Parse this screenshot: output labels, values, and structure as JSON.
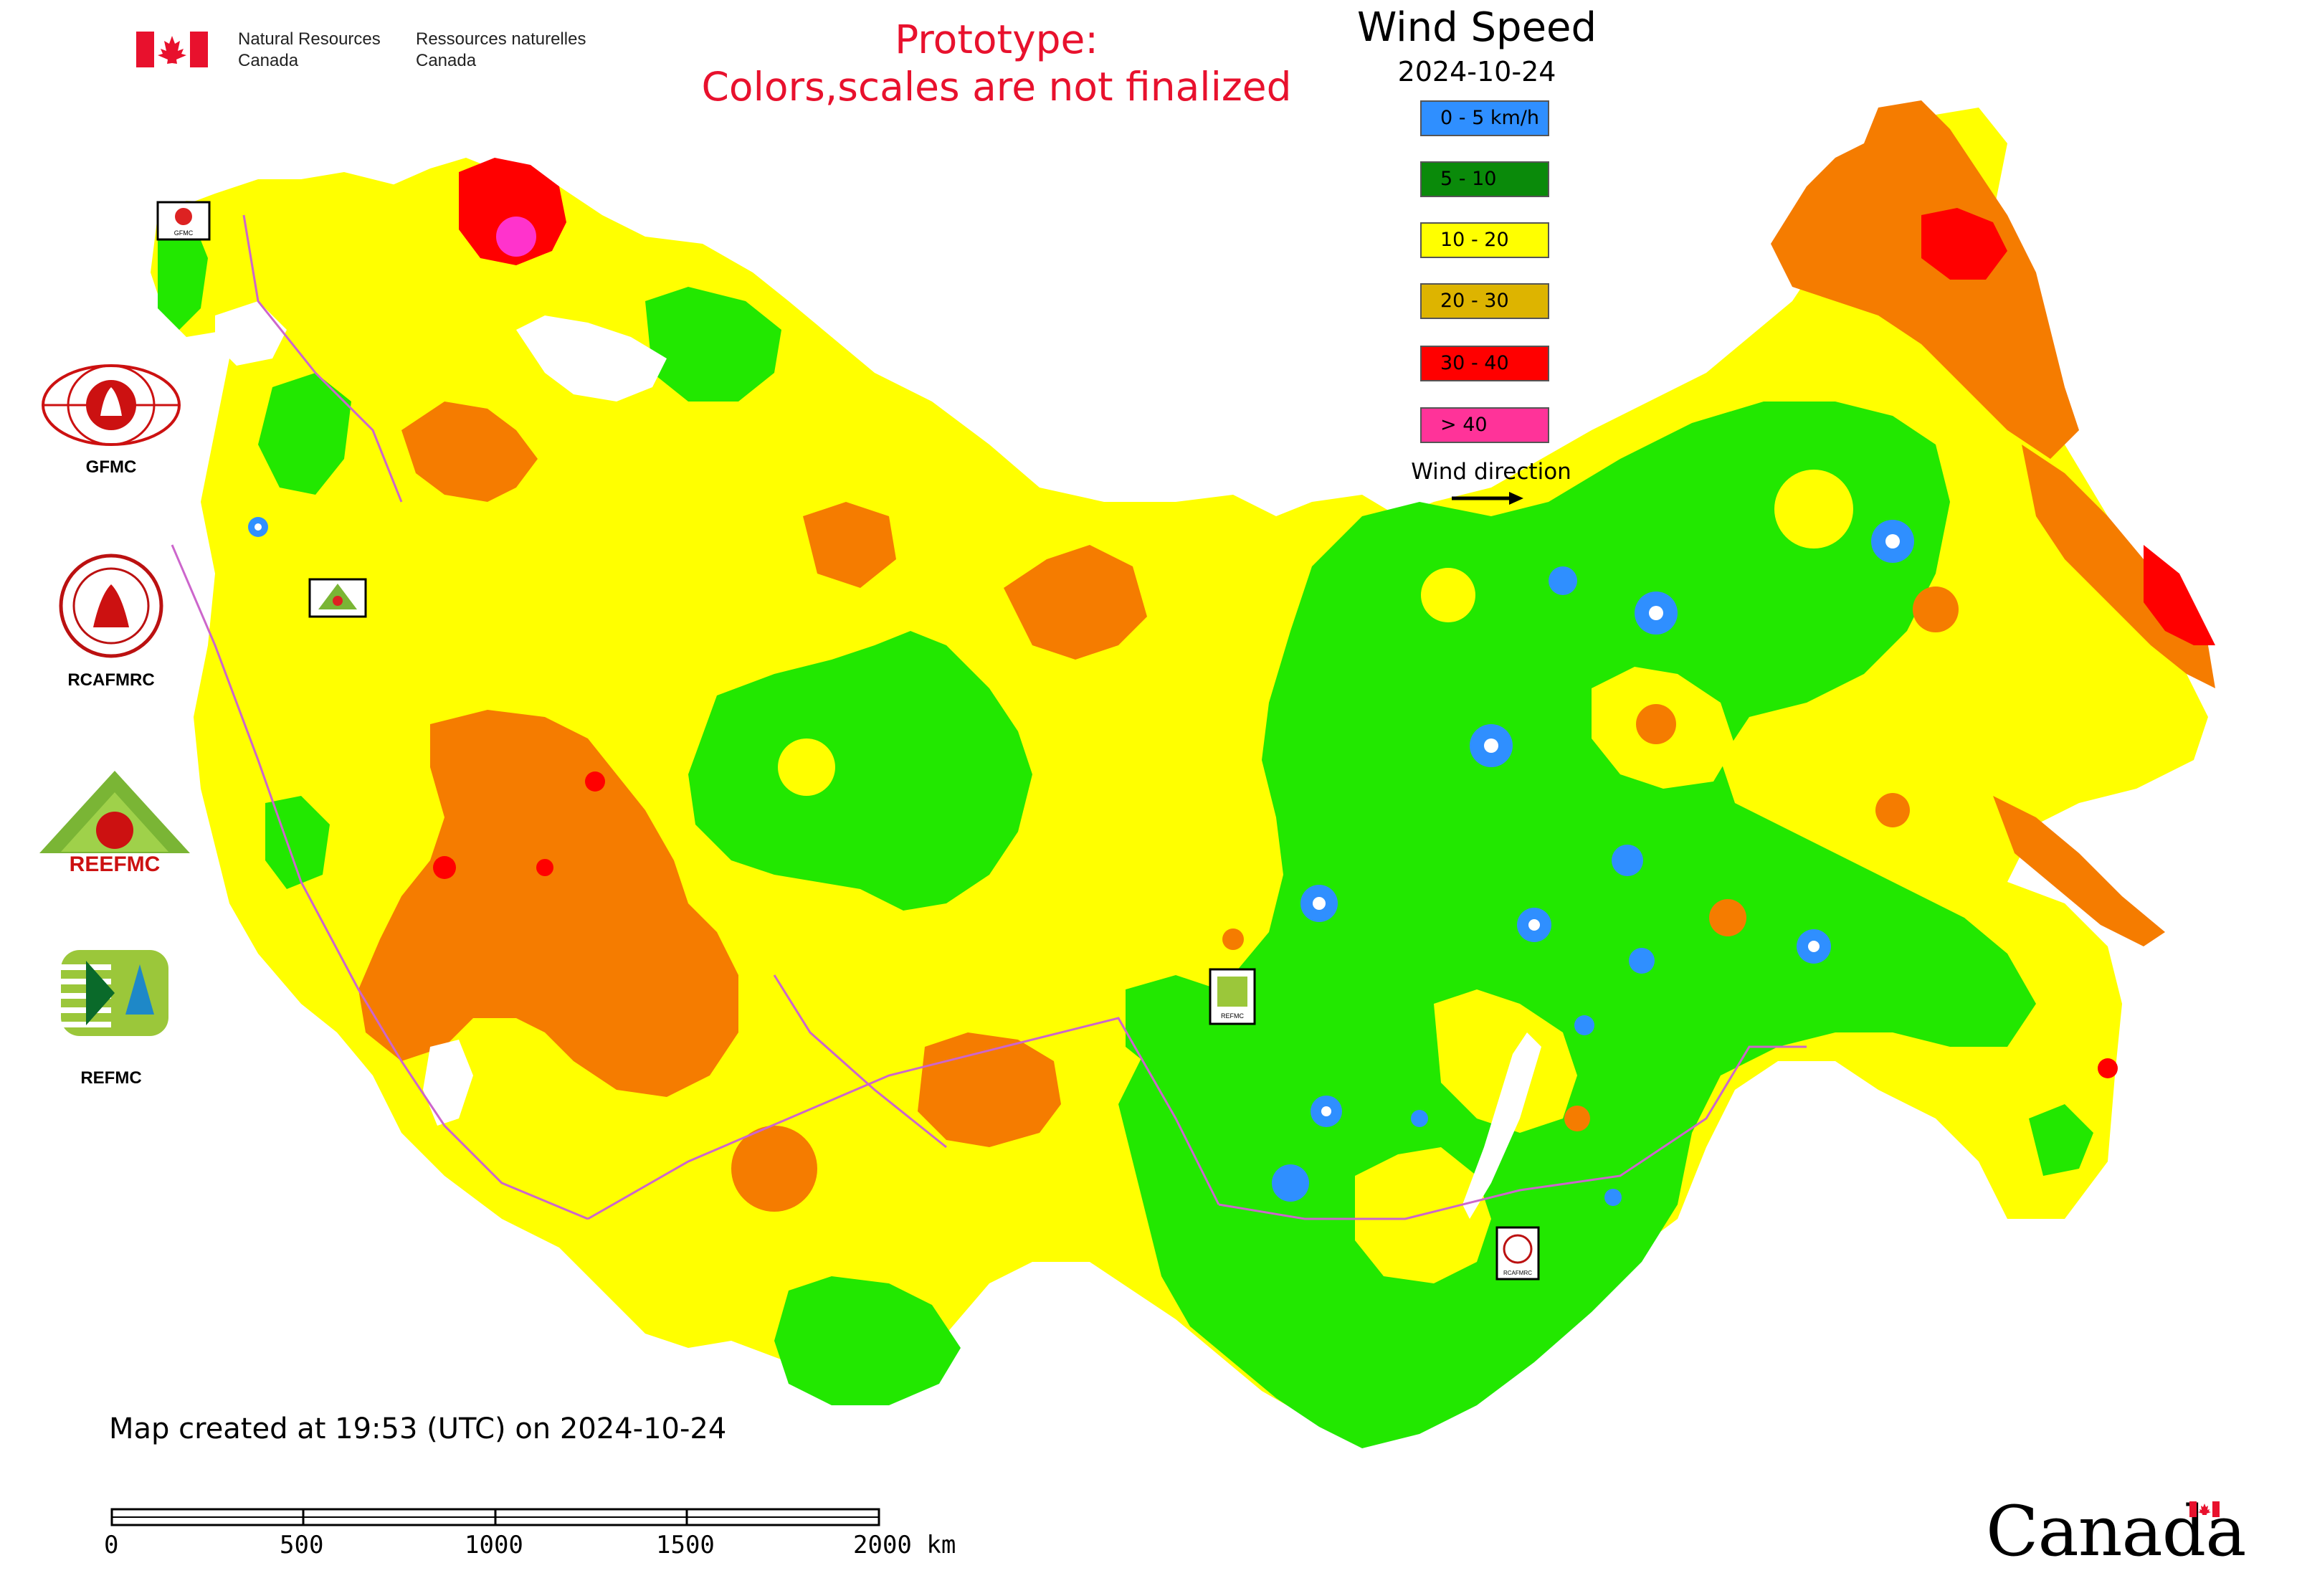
{
  "government": {
    "name_en_line1": "Natural Resources",
    "name_en_line2": "Canada",
    "name_fr_line1": "Ressources naturelles",
    "name_fr_line2": "Canada"
  },
  "notice": {
    "line1": "Prototype:",
    "line2": "Colors,scales are not finalized",
    "color": "#e8112d"
  },
  "legend": {
    "title": "Wind Speed",
    "date": "2024-10-24",
    "classes": [
      {
        "label": "0 - 5 km/h",
        "color": "#2f8fff"
      },
      {
        "label": "5 - 10",
        "color": "#0a8a0a"
      },
      {
        "label": "10 - 20",
        "color": "#ffff00"
      },
      {
        "label": "20 - 30",
        "color": "#ddb400"
      },
      {
        "label": "30 - 40",
        "color": "#ff0000"
      },
      {
        "label": "> 40",
        "color": "#ff3399"
      }
    ],
    "wind_direction_label": "Wind direction"
  },
  "map_colors": {
    "calm": "#2f8fff",
    "light": "#22e800",
    "moderate": "#ffff00",
    "fresh": "#f57c00",
    "strong": "#ff0000",
    "gale": "#ff33cc",
    "water": "#ffffff",
    "border": "#cc66cc"
  },
  "centers": [
    {
      "name": "GFMC",
      "marker_label": "GFMC"
    },
    {
      "name": "RCAFMRC",
      "marker_label": "RCAFMRC"
    },
    {
      "name": "REEFMC",
      "marker_label": "REEFMC"
    },
    {
      "name": "REFMC",
      "marker_label": "REFMC"
    }
  ],
  "footer": {
    "created": "Map created at 19:53 (UTC) on 2024-10-24",
    "scale_labels": [
      "0",
      "500",
      "1000",
      "1500",
      "2000 km"
    ],
    "wordmark": "Canada"
  }
}
